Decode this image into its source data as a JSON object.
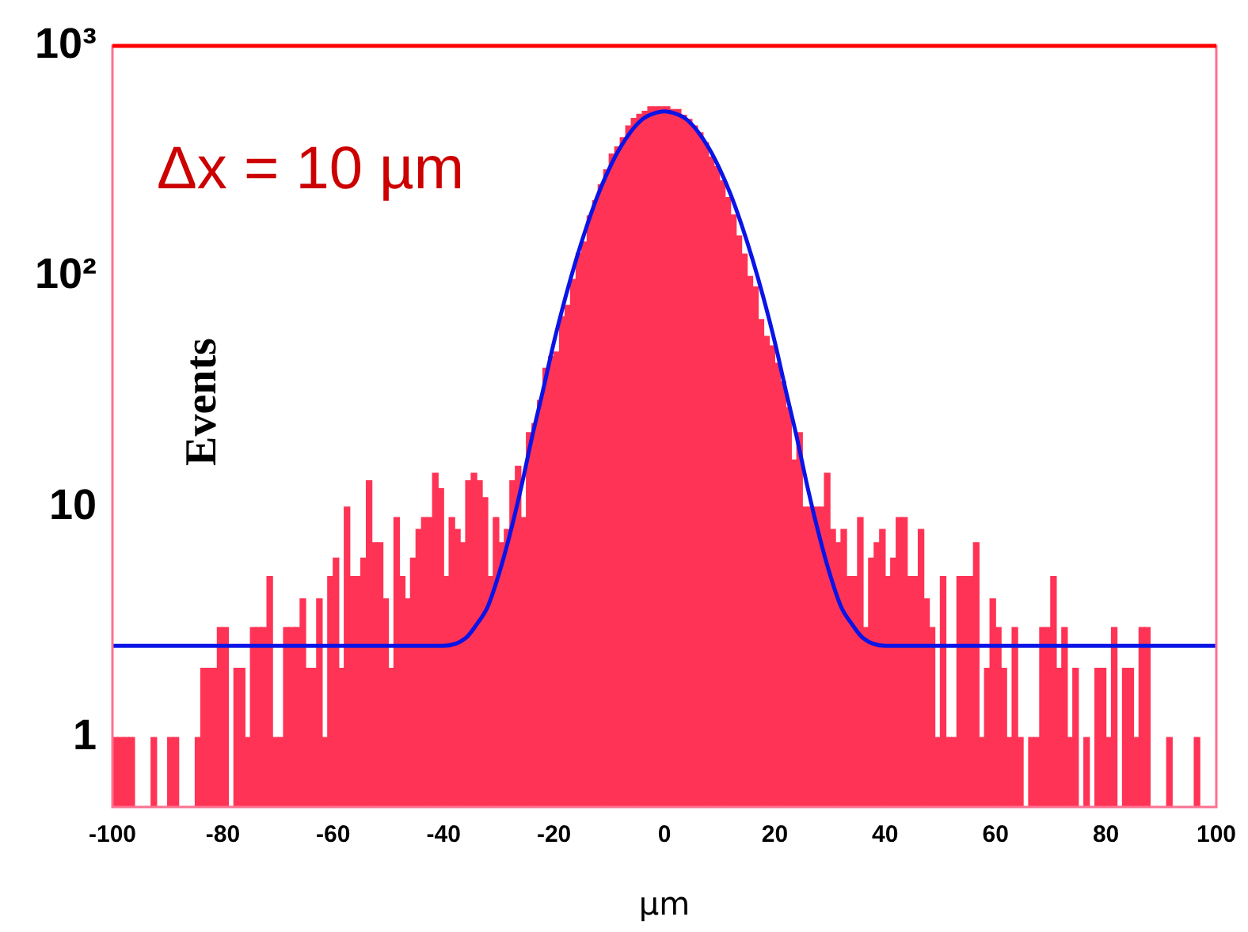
{
  "chart_data": {
    "type": "histogram",
    "xlabel": "µm",
    "ylabel": "Events",
    "annotations": [
      "Δx = 10 µm"
    ],
    "log": "y",
    "xlim": [
      -100,
      100
    ],
    "ylim": [
      0.5,
      1000
    ],
    "xticks": [
      -100,
      -80,
      -60,
      -40,
      -20,
      0,
      20,
      40,
      60,
      80,
      100
    ],
    "yticks": [
      1,
      10,
      {
        "value": 100,
        "label": "10²"
      },
      {
        "value": 1000,
        "label": "10³"
      }
    ],
    "color": "#ff3355",
    "bins": [
      -100,
      -99,
      -98,
      -97,
      -96,
      -95,
      -94,
      -93,
      -92,
      -91,
      -90,
      -89,
      -88,
      -87,
      -86,
      -85,
      -84,
      -83,
      -82,
      -81,
      -80,
      -79,
      -78,
      -77,
      -76,
      -75,
      -74,
      -73,
      -72,
      -71,
      -70,
      -69,
      -68,
      -67,
      -66,
      -65,
      -64,
      -63,
      -62,
      -61,
      -60,
      -59,
      -58,
      -57,
      -56,
      -55,
      -54,
      -53,
      -52,
      -51,
      -50,
      -49,
      -48,
      -47,
      -46,
      -45,
      -44,
      -43,
      -42,
      -41,
      -40,
      -39,
      -38,
      -37,
      -36,
      -35,
      -34,
      -33,
      -32,
      -31,
      -30,
      -29,
      -28,
      -27,
      -26,
      -25,
      -24,
      -23,
      -22,
      -21,
      -20,
      -19,
      -18,
      -17,
      -16,
      -15,
      -14,
      -13,
      -12,
      -11,
      -10,
      -9,
      -8,
      -7,
      -6,
      -5,
      -4,
      -3,
      -2,
      -1,
      0,
      1,
      2,
      3,
      4,
      5,
      6,
      7,
      8,
      9,
      10,
      11,
      12,
      13,
      14,
      15,
      16,
      17,
      18,
      19,
      20,
      21,
      22,
      23,
      24,
      25,
      26,
      27,
      28,
      29,
      30,
      31,
      32,
      33,
      34,
      35,
      36,
      37,
      38,
      39,
      40,
      41,
      42,
      43,
      44,
      45,
      46,
      47,
      48,
      49,
      50,
      51,
      52,
      53,
      54,
      55,
      56,
      57,
      58,
      59,
      60,
      61,
      62,
      63,
      64,
      65,
      66,
      67,
      68,
      69,
      70,
      71,
      72,
      73,
      74,
      75,
      76,
      77,
      78,
      79,
      80,
      81,
      82,
      83,
      84,
      85,
      86,
      87,
      88,
      89,
      90,
      91,
      92,
      93,
      94,
      95,
      96,
      97,
      98,
      99,
      100
    ],
    "values": [
      1,
      1,
      1,
      1,
      null,
      null,
      null,
      1,
      null,
      null,
      1,
      1,
      null,
      null,
      null,
      1,
      2,
      2,
      2,
      3,
      3,
      null,
      2,
      2,
      1,
      3,
      3,
      3,
      5,
      1,
      1,
      3,
      3,
      3,
      4,
      2,
      2,
      4,
      1,
      5,
      6,
      2,
      10,
      5,
      5,
      6,
      13,
      7,
      7,
      4,
      2,
      9,
      5,
      4,
      6,
      8,
      9,
      9,
      14,
      12,
      5,
      9,
      8,
      7,
      13,
      14,
      13,
      11,
      5,
      9,
      7,
      8,
      13,
      15,
      9,
      21,
      23,
      29,
      40,
      45,
      47,
      67,
      75,
      97,
      126,
      141,
      183,
      213,
      250,
      290,
      340,
      365,
      400,
      450,
      485,
      505,
      520,
      545,
      545,
      545,
      545,
      530,
      530,
      500,
      480,
      450,
      420,
      380,
      330,
      300,
      260,
      220,
      185,
      150,
      125,
      100,
      90,
      65,
      55,
      50,
      42,
      35,
      27,
      16,
      21,
      10,
      10,
      10,
      10,
      14,
      8,
      7,
      8,
      5,
      5,
      9,
      3,
      6,
      7,
      8,
      5,
      6,
      9,
      9,
      5,
      5,
      8,
      4,
      3,
      1,
      5,
      1,
      1,
      5,
      5,
      5,
      7,
      1,
      2,
      4,
      3,
      2,
      1,
      3,
      1,
      null,
      1,
      1,
      3,
      3,
      5,
      2,
      3,
      1,
      2,
      null,
      1,
      null,
      2,
      2,
      1,
      3,
      null,
      2,
      2,
      1,
      3,
      3,
      null,
      null,
      null,
      1,
      null,
      null,
      null,
      null,
      1,
      null,
      null,
      null
    ],
    "series": [
      {
        "type": "line",
        "color": "#0a14e6",
        "x": [
          -100,
          -70,
          -40,
          -36,
          -34,
          -32,
          -30,
          -28,
          -26,
          -24,
          -22,
          -20,
          -18,
          -16,
          -14,
          -12,
          -10,
          -8,
          -6,
          -4,
          -2,
          0,
          2,
          4,
          6,
          8,
          10,
          12,
          14,
          16,
          18,
          20,
          22,
          24,
          26,
          28,
          30,
          32,
          34,
          36,
          40,
          70,
          100
        ],
        "values": [
          2.5,
          2.5,
          2.5,
          2.7,
          3.1,
          3.7,
          5.1,
          7.6,
          12,
          20,
          32,
          52,
          80,
          118,
          167,
          227,
          293,
          362,
          427,
          480,
          508,
          520,
          508,
          480,
          427,
          362,
          293,
          227,
          167,
          118,
          80,
          52,
          32,
          20,
          12,
          7.6,
          5.1,
          3.7,
          3.1,
          2.7,
          2.5,
          2.5,
          2.5
        ]
      }
    ]
  }
}
